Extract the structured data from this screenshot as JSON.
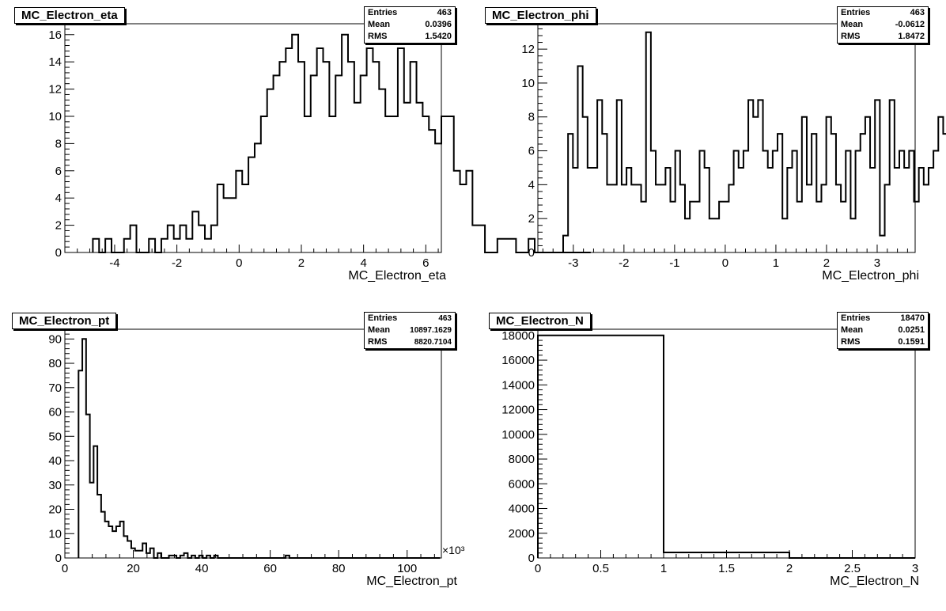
{
  "chart_data": [
    {
      "type": "histogram",
      "title": "MC_Electron_eta",
      "xlabel": "MC_Electron_eta",
      "ylabel": "",
      "xlim": [
        -5.6,
        6.5
      ],
      "ylim": [
        0,
        16.8
      ],
      "xticks": [
        -4,
        -2,
        0,
        2,
        4,
        6
      ],
      "yticks": [
        0,
        2,
        4,
        6,
        8,
        10,
        12,
        14,
        16
      ],
      "stats": {
        "entries_label": "Entries",
        "entries": "463",
        "mean_label": "Mean",
        "mean": "0.0396",
        "rms_label": "RMS",
        "rms": "1.5420"
      },
      "bins": {
        "lo": -4.7,
        "width": 0.2,
        "values": [
          1,
          0,
          1,
          0,
          0,
          1,
          2,
          0,
          0,
          1,
          0,
          1,
          2,
          1,
          2,
          1,
          3,
          2,
          1,
          2,
          5,
          4,
          4,
          6,
          5,
          7,
          8,
          10,
          12,
          13,
          14,
          15,
          16,
          14,
          10,
          13,
          15,
          14,
          10,
          13,
          16,
          14,
          11,
          13,
          15,
          14,
          12,
          10,
          10,
          15,
          11,
          14,
          11,
          10,
          9,
          8,
          10,
          10,
          6,
          5,
          6,
          2,
          2,
          0,
          0,
          1,
          1,
          1,
          0,
          0,
          1,
          0,
          0,
          0,
          0,
          0,
          0,
          0,
          0,
          0
        ]
      }
    },
    {
      "type": "histogram",
      "title": "MC_Electron_phi",
      "xlabel": "MC_Electron_phi",
      "ylabel": "",
      "xlim": [
        -3.7,
        3.75
      ],
      "ylim": [
        0,
        13.5
      ],
      "xticks": [
        -3,
        -2,
        -1,
        0,
        1,
        2,
        3
      ],
      "yticks": [
        0,
        2,
        4,
        6,
        8,
        10,
        12
      ],
      "stats": {
        "entries_label": "Entries",
        "entries": "463",
        "mean_label": "Mean",
        "mean": "-0.0612",
        "rms_label": "RMS",
        "rms": "1.8472"
      },
      "bins": {
        "lo": -3.2,
        "width": 0.0962,
        "values": [
          1,
          7,
          5,
          11,
          8,
          5,
          5,
          9,
          7,
          4,
          4,
          9,
          4,
          5,
          4,
          4,
          3,
          13,
          6,
          4,
          4,
          5,
          3,
          6,
          4,
          2,
          3,
          3,
          6,
          5,
          2,
          2,
          3,
          3,
          4,
          6,
          5,
          6,
          9,
          8,
          9,
          6,
          5,
          6,
          7,
          2,
          5,
          6,
          3,
          8,
          4,
          7,
          3,
          4,
          8,
          7,
          4,
          3,
          6,
          2,
          6,
          7,
          8,
          5,
          9,
          1,
          4,
          9,
          5,
          6,
          5,
          6,
          3,
          5,
          4,
          5,
          6,
          8,
          7,
          2,
          6,
          5,
          8,
          2,
          6,
          8,
          5
        ]
      }
    },
    {
      "type": "histogram",
      "title": "MC_Electron_pt",
      "xlabel": "MC_Electron_pt",
      "ylabel": "",
      "x_multiplier": "×10³",
      "xlim": [
        0,
        110
      ],
      "ylim": [
        0,
        94
      ],
      "xticks": [
        0,
        20,
        40,
        60,
        80,
        100
      ],
      "yticks": [
        0,
        10,
        20,
        30,
        40,
        50,
        60,
        70,
        80,
        90
      ],
      "stats": {
        "entries_label": "Entries",
        "entries": "463",
        "mean_label": "Mean",
        "mean": "10897.1629",
        "rms_label": "RMS",
        "rms": "8820.7104"
      },
      "bins": {
        "lo": 4,
        "width": 1.1,
        "values": [
          77,
          90,
          59,
          31,
          46,
          26,
          19,
          15,
          13,
          11,
          13,
          15,
          9,
          7,
          4,
          3,
          3,
          6,
          2,
          4,
          0,
          2,
          0,
          0,
          1,
          1,
          0,
          1,
          2,
          0,
          1,
          0,
          1,
          0,
          1,
          0,
          1,
          0,
          0,
          0,
          0,
          0,
          0,
          0,
          0,
          0,
          0,
          0,
          0,
          0,
          0,
          0,
          0,
          0,
          0,
          1,
          0,
          0,
          0,
          0,
          0,
          0,
          0,
          0,
          0,
          0,
          0,
          0,
          0,
          0,
          0,
          0,
          0,
          0,
          0,
          0,
          0,
          0,
          0,
          0,
          0,
          0,
          0,
          0,
          0,
          0,
          0,
          0,
          0,
          0,
          0,
          0,
          0,
          0,
          0,
          0
        ]
      }
    },
    {
      "type": "histogram",
      "title": "MC_Electron_N",
      "xlabel": "MC_Electron_N",
      "ylabel": "",
      "xlim": [
        0,
        3
      ],
      "ylim": [
        0,
        18500
      ],
      "xticks": [
        0,
        0.5,
        1,
        1.5,
        2,
        2.5,
        3
      ],
      "yticks": [
        0,
        2000,
        4000,
        6000,
        8000,
        10000,
        12000,
        14000,
        16000,
        18000
      ],
      "stats": {
        "entries_label": "Entries",
        "entries": "18470",
        "mean_label": "Mean",
        "mean": "0.0251",
        "rms_label": "RMS",
        "rms": "0.1591"
      },
      "bins": {
        "lo": 0,
        "width": 1,
        "values": [
          18000,
          450,
          0
        ]
      }
    }
  ]
}
